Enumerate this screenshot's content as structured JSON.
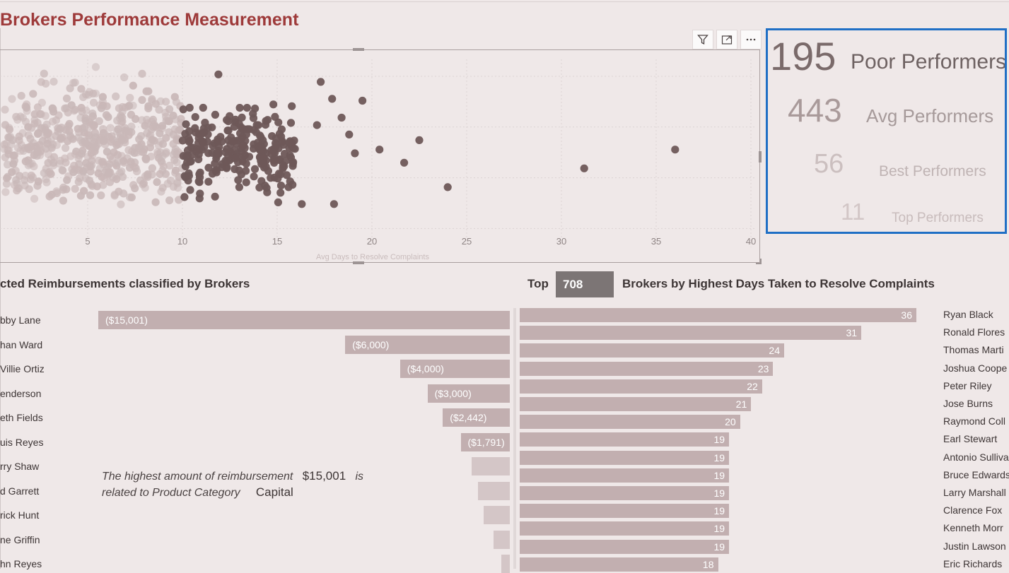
{
  "page": {
    "title": "Brokers Performance Measurement"
  },
  "visual_header": {
    "filter_icon": "filter-icon",
    "focus_icon": "focus-mode-icon",
    "more_icon": "more-options-icon"
  },
  "chart_data": [
    {
      "type": "scatter",
      "xlabel": "Avg Days to Resolve Complaints",
      "x_ticks": [
        "5",
        "10",
        "15",
        "20",
        "25",
        "30",
        "35",
        "40"
      ],
      "xlim": [
        0.5,
        40
      ],
      "grid": true,
      "color_light": "#c9b8b8",
      "color_dark": "#6e5858",
      "points": [
        [
          36,
          0.52
        ],
        [
          31.2,
          0.42
        ],
        [
          24,
          0.32
        ],
        [
          22.5,
          0.57
        ],
        [
          21.7,
          0.45
        ],
        [
          20.4,
          0.52
        ],
        [
          19.5,
          0.78
        ],
        [
          19.1,
          0.5
        ],
        [
          18.8,
          0.6
        ],
        [
          18.4,
          0.69
        ],
        [
          18.0,
          0.23
        ],
        [
          17.9,
          0.79
        ],
        [
          17.3,
          0.88
        ],
        [
          17.1,
          0.65
        ],
        [
          16.3,
          0.23
        ],
        [
          15.6,
          0.32
        ],
        [
          15.3,
          0.42
        ],
        [
          14.8,
          0.76
        ],
        [
          14.0,
          0.53
        ],
        [
          13.0,
          0.32
        ],
        [
          11.9,
          0.92
        ],
        [
          9.6,
          0.8
        ],
        [
          8.2,
          0.83
        ],
        [
          8.1,
          0.83
        ],
        [
          7.4,
          0.86
        ],
        [
          5.8,
          0.8
        ],
        [
          4.8,
          0.3
        ],
        [
          3.1,
          0.28
        ],
        [
          2.4,
          0.35
        ],
        [
          1.0,
          0.4
        ]
      ],
      "clusters": [
        {
          "x_min": 0.6,
          "x_max": 10.0,
          "y_min": 0.22,
          "y_max": 0.86,
          "count": 430,
          "tone": "light"
        },
        {
          "x_min": 2.5,
          "x_max": 9.2,
          "y_min": 0.3,
          "y_max": 0.98,
          "count": 80,
          "tone": "light"
        },
        {
          "x_min": 10.0,
          "x_max": 16.0,
          "y_min": 0.22,
          "y_max": 0.79,
          "count": 210,
          "tone": "dark"
        },
        {
          "x_min": 12.0,
          "x_max": 16.0,
          "y_min": 0.38,
          "y_max": 0.64,
          "count": 40,
          "tone": "dark"
        }
      ]
    },
    {
      "type": "bar",
      "title": "cted Reimbursements classified by Brokers",
      "categories": [
        "bby Lane",
        "han Ward",
        "Villie Ortiz",
        "enderson",
        "eth Fields",
        "uis Reyes",
        "rry Shaw",
        "d Garrett",
        "rick Hunt",
        "ne Griffin",
        "hn Reyes"
      ],
      "values": [
        -15001,
        -6000,
        -4000,
        -3000,
        -2442,
        -1791,
        -1400,
        -1150,
        -950,
        -600,
        -300
      ],
      "labels": [
        "($15,001)",
        "($6,000)",
        "($4,000)",
        "($3,000)",
        "($2,442)",
        "($1,791)",
        "",
        "",
        "",
        "",
        ""
      ]
    },
    {
      "type": "bar",
      "title_prefix": "Top",
      "title": "Brokers by Highest Days Taken to Resolve Complaints",
      "categories": [
        "Ryan Black",
        "Ronald Flores",
        "Thomas Marti",
        "Joshua Coope",
        "Peter Riley",
        "Jose Burns",
        "Raymond Coll",
        "Earl Stewart",
        "Antonio Sulliva",
        "Bruce Edwards",
        "Larry Marshall",
        "Clarence Fox",
        "Kenneth Morr",
        "Justin Lawson",
        "Eric Richards"
      ],
      "values": [
        36,
        31,
        24,
        23,
        22,
        21,
        20,
        19,
        19,
        19,
        19,
        19,
        19,
        19,
        18
      ],
      "xlim": [
        0,
        36
      ]
    }
  ],
  "topn": {
    "value": "708"
  },
  "kpi": [
    {
      "value": "195",
      "label": "Poor Performers"
    },
    {
      "value": "443",
      "label": "Avg Performers"
    },
    {
      "value": "56",
      "label": "Best Performers"
    },
    {
      "value": "11",
      "label": "Top Performers"
    }
  ],
  "annotation": {
    "line1_text": "The highest amount of reimbursement",
    "amount": "$15,001",
    "is_text": "is",
    "line2_text": "related to Product Category",
    "category": "Capital"
  }
}
